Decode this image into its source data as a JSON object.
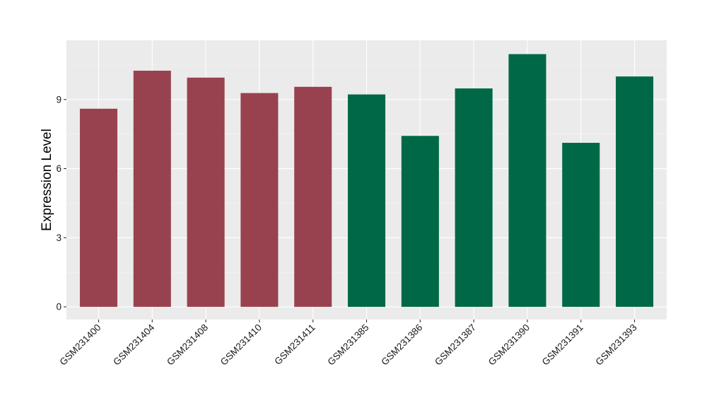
{
  "chart_data": {
    "type": "bar",
    "title": "",
    "xlabel": "",
    "ylabel": "Expression Level",
    "categories": [
      "GSM231400",
      "GSM231404",
      "GSM231408",
      "GSM231410",
      "GSM231411",
      "GSM231385",
      "GSM231386",
      "GSM231387",
      "GSM231390",
      "GSM231391",
      "GSM231393"
    ],
    "values": [
      8.6,
      10.25,
      9.95,
      9.28,
      9.55,
      9.22,
      7.42,
      9.48,
      10.97,
      7.12,
      10.0
    ],
    "groups": [
      "a",
      "a",
      "a",
      "a",
      "a",
      "b",
      "b",
      "b",
      "b",
      "b",
      "b"
    ],
    "group_colors": {
      "a": "#99424f",
      "b": "#006847"
    },
    "yticks": [
      0,
      3,
      6,
      9
    ],
    "ylim": [
      -0.55,
      11.57
    ],
    "grid": true,
    "legend": "none"
  }
}
